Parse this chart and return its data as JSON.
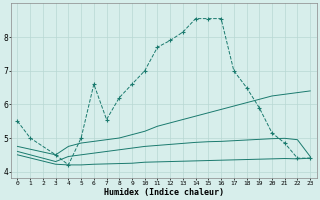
{
  "title": "",
  "xlabel": "Humidex (Indice chaleur)",
  "bg_color": "#d7eeeb",
  "line_color": "#1a7a6e",
  "grid_color": "#b8d8d4",
  "xlim": [
    -0.5,
    23.5
  ],
  "ylim": [
    3.8,
    9.0
  ],
  "xticks": [
    0,
    1,
    2,
    3,
    4,
    5,
    6,
    7,
    8,
    9,
    10,
    11,
    12,
    13,
    14,
    15,
    16,
    17,
    18,
    19,
    20,
    21,
    22,
    23
  ],
  "yticks": [
    4,
    5,
    6,
    7,
    8
  ],
  "series": [
    {
      "x": [
        0,
        1,
        3,
        4,
        5,
        6,
        7,
        8,
        9,
        10,
        11,
        12,
        13,
        14,
        15,
        16,
        17,
        18,
        19,
        20,
        21,
        22,
        23
      ],
      "y": [
        5.5,
        5.0,
        4.5,
        4.2,
        5.0,
        6.6,
        5.55,
        6.2,
        6.6,
        7.0,
        7.7,
        7.9,
        8.15,
        8.55,
        8.55,
        8.55,
        7.0,
        6.5,
        5.9,
        5.15,
        4.85,
        4.4,
        4.4
      ],
      "linestyle": "--",
      "marker": "+"
    },
    {
      "x": [
        0,
        3,
        4,
        5,
        6,
        7,
        8,
        9,
        10,
        11,
        12,
        13,
        14,
        15,
        16,
        17,
        18,
        19,
        20,
        21,
        22,
        23
      ],
      "y": [
        4.75,
        4.5,
        4.75,
        4.85,
        4.9,
        4.95,
        5.0,
        5.1,
        5.2,
        5.35,
        5.45,
        5.55,
        5.65,
        5.75,
        5.85,
        5.95,
        6.05,
        6.15,
        6.25,
        6.3,
        6.35,
        6.4
      ],
      "linestyle": "-",
      "marker": null
    },
    {
      "x": [
        0,
        3,
        4,
        5,
        6,
        7,
        8,
        9,
        10,
        11,
        12,
        13,
        14,
        15,
        16,
        17,
        18,
        19,
        20,
        21,
        22,
        23
      ],
      "y": [
        4.6,
        4.3,
        4.45,
        4.5,
        4.55,
        4.6,
        4.65,
        4.7,
        4.75,
        4.78,
        4.81,
        4.84,
        4.87,
        4.89,
        4.9,
        4.92,
        4.94,
        4.96,
        4.98,
        4.99,
        4.95,
        4.45
      ],
      "linestyle": "-",
      "marker": null
    },
    {
      "x": [
        0,
        3,
        4,
        5,
        6,
        7,
        8,
        9,
        10,
        11,
        12,
        13,
        14,
        15,
        16,
        17,
        18,
        19,
        20,
        21,
        22,
        23
      ],
      "y": [
        4.5,
        4.22,
        4.2,
        4.2,
        4.22,
        4.23,
        4.24,
        4.25,
        4.28,
        4.29,
        4.3,
        4.31,
        4.32,
        4.33,
        4.34,
        4.35,
        4.36,
        4.37,
        4.38,
        4.39,
        4.38,
        4.4
      ],
      "linestyle": "-",
      "marker": null
    }
  ]
}
